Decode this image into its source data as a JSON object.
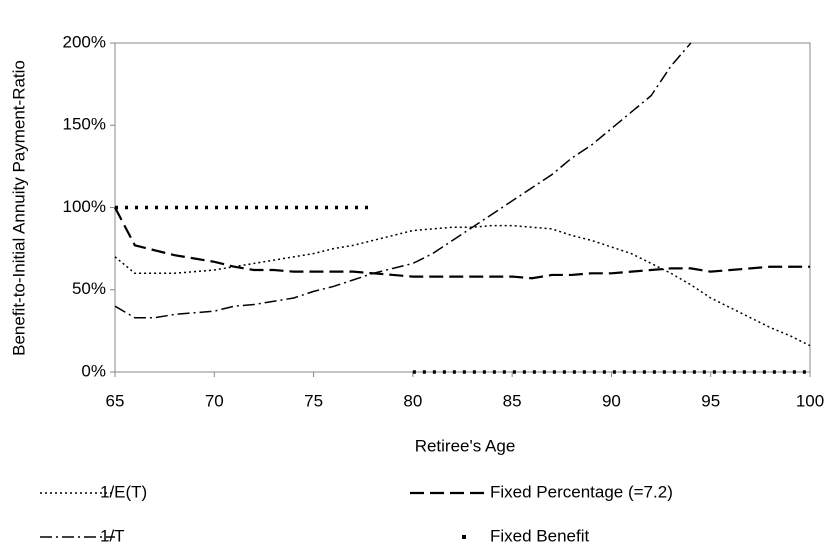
{
  "chart_data": {
    "type": "line",
    "x_label": "Retiree's Age",
    "y_label": "Benefit-to-Initial Annuity Payment-Ratio",
    "x": [
      65,
      66,
      67,
      68,
      69,
      70,
      71,
      72,
      73,
      74,
      75,
      76,
      77,
      78,
      79,
      80,
      81,
      82,
      83,
      84,
      85,
      86,
      87,
      88,
      89,
      90,
      91,
      92,
      93,
      94,
      95,
      96,
      97,
      98,
      99,
      100
    ],
    "series": [
      {
        "name": "1/E(T)",
        "color": "#000000",
        "dash": "dot",
        "values": [
          70,
          60,
          60,
          60,
          61,
          62,
          64,
          66,
          68,
          70,
          72,
          75,
          77,
          80,
          83,
          86,
          87,
          88,
          88,
          89,
          89,
          88,
          87,
          83,
          80,
          76,
          72,
          66,
          60,
          53,
          45,
          39,
          33,
          27,
          22,
          16
        ]
      },
      {
        "name": "Fixed Percentage (=7.2)",
        "color": "#000000",
        "dash": "dash",
        "values": [
          100,
          77,
          74,
          71,
          69,
          67,
          64,
          62,
          62,
          61,
          61,
          61,
          61,
          60,
          59,
          58,
          58,
          58,
          58,
          58,
          58,
          57,
          59,
          59,
          60,
          60,
          61,
          62,
          63,
          63,
          61,
          62,
          63,
          64,
          64,
          64
        ]
      },
      {
        "name": "1/T",
        "color": "#000000",
        "dash": "dashdot",
        "values": [
          40,
          33,
          33,
          35,
          36,
          37,
          40,
          41,
          43,
          45,
          49,
          52,
          56,
          60,
          63,
          66,
          72,
          80,
          88,
          96,
          104,
          112,
          120,
          130,
          138,
          148,
          158,
          168,
          186,
          200,
          null,
          null,
          null,
          null,
          null,
          null
        ]
      },
      {
        "name": "Fixed Benefit",
        "color": "#000000",
        "dash": "square",
        "values": [
          100,
          100,
          100,
          100,
          100,
          100,
          100,
          100,
          100,
          100,
          100,
          100,
          100,
          100,
          null,
          0,
          0,
          0,
          0,
          0,
          0,
          0,
          0,
          0,
          0,
          0,
          0,
          0,
          0,
          0,
          0,
          0,
          0,
          0,
          0,
          0
        ]
      }
    ],
    "xlim": [
      65,
      100
    ],
    "xticks": [
      65,
      70,
      75,
      80,
      85,
      90,
      95,
      100
    ],
    "ylim": [
      0,
      200
    ],
    "yticks": [
      {
        "value": 0,
        "label": "0%"
      },
      {
        "value": 50,
        "label": "50%"
      },
      {
        "value": 100,
        "label": "100%"
      },
      {
        "value": 150,
        "label": "150%"
      },
      {
        "value": 200,
        "label": "200%"
      }
    ],
    "grid": false,
    "legend": "bottom"
  }
}
